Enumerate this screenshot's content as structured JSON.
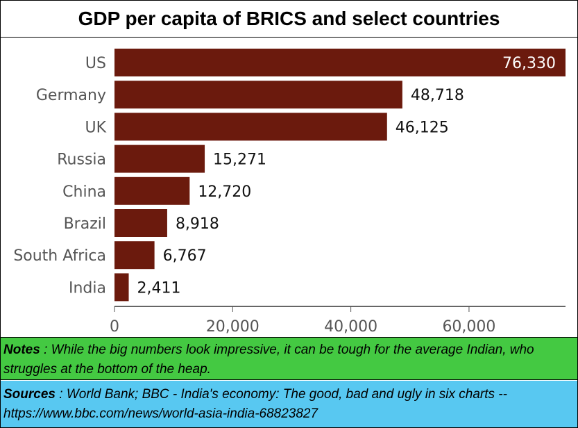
{
  "title": "GDP per capita of BRICS and select countries",
  "notes": {
    "label": "Notes",
    "text": " : While the big numbers look impressive, it can be tough for the average Indian, who struggles at the bottom of the heap."
  },
  "sources": {
    "label": "Sources",
    "text": " : World Bank; BBC - India's economy: The good, bad and ugly in six charts -- https://www.bbc.com/news/world-asia-india-68823827"
  },
  "colors": {
    "bar": "#6b1a0d",
    "notes_bg": "#44c942",
    "sources_bg": "#58c8f1"
  },
  "chart_data": {
    "type": "bar",
    "orientation": "horizontal",
    "categories": [
      "US",
      "Germany",
      "UK",
      "Russia",
      "China",
      "Brazil",
      "South Africa",
      "India"
    ],
    "values": [
      76330,
      48718,
      46125,
      15271,
      12720,
      8918,
      6767,
      2411
    ],
    "value_labels": [
      "76,330",
      "48,718",
      "46,125",
      "15,271",
      "12,720",
      "8,918",
      "6,767",
      "2,411"
    ],
    "x_ticks": [
      0,
      20000,
      40000,
      60000
    ],
    "x_tick_labels": [
      "0",
      "20,000",
      "40,000",
      "60,000"
    ],
    "xlim": [
      0,
      76330
    ],
    "grid": false,
    "legend": "none"
  }
}
